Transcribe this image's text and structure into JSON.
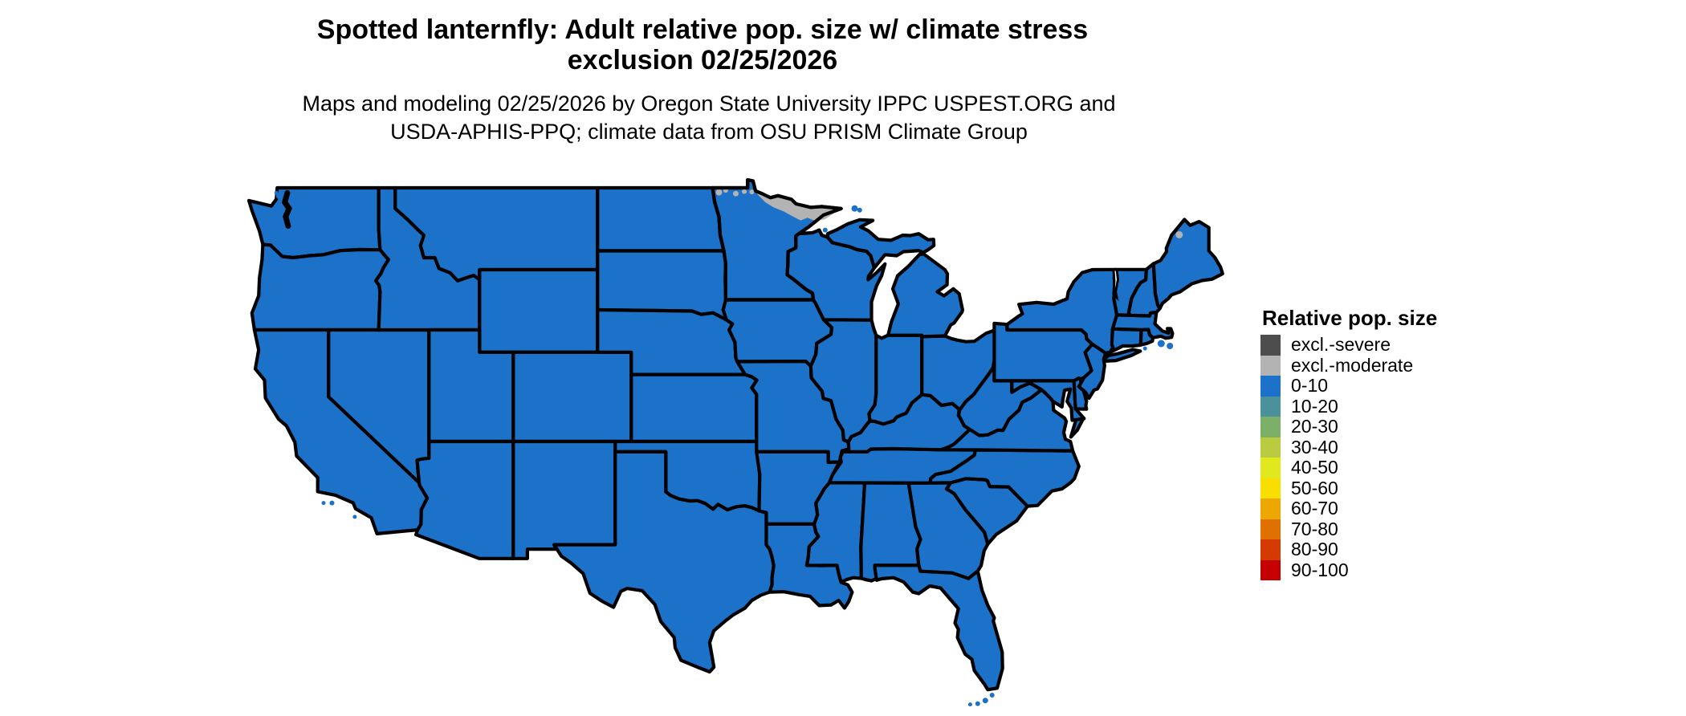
{
  "title": {
    "line1": "Spotted lanternfly: Adult relative pop. size w/ climate stress",
    "line2": "exclusion 02/25/2026"
  },
  "subtitle": {
    "line1": "Maps and modeling 02/25/2026 by Oregon State University IPPC USPEST.ORG and",
    "line2": "USDA-APHIS-PPQ; climate data from OSU PRISM Climate Group"
  },
  "legend": {
    "title": "Relative pop. size",
    "items": [
      {
        "label": "excl.-severe",
        "color": "#4d4d4d"
      },
      {
        "label": "excl.-moderate",
        "color": "#b3b3b3"
      },
      {
        "label": "0-10",
        "color": "#1b72c8"
      },
      {
        "label": "10-20",
        "color": "#4b919c"
      },
      {
        "label": "20-30",
        "color": "#7cb069"
      },
      {
        "label": "30-40",
        "color": "#b9cc40"
      },
      {
        "label": "40-50",
        "color": "#e2e81e"
      },
      {
        "label": "50-60",
        "color": "#f8df00"
      },
      {
        "label": "60-70",
        "color": "#eda800"
      },
      {
        "label": "70-80",
        "color": "#e07000"
      },
      {
        "label": "80-90",
        "color": "#d53b00"
      },
      {
        "label": "90-100",
        "color": "#c60000"
      }
    ]
  },
  "map": {
    "region": "Contiguous United States with state boundaries",
    "land_fill": "#1b72c8",
    "border_color": "#000000",
    "background": "#ffffff",
    "default_class": "0-10",
    "excluded_patch_color": "#b3b3b3",
    "excluded_areas": [
      {
        "area": "northern Minnesota border / Arrowhead region",
        "class": "excl.-moderate"
      },
      {
        "area": "small spot in far northern Maine",
        "class": "excl.-moderate"
      }
    ]
  }
}
